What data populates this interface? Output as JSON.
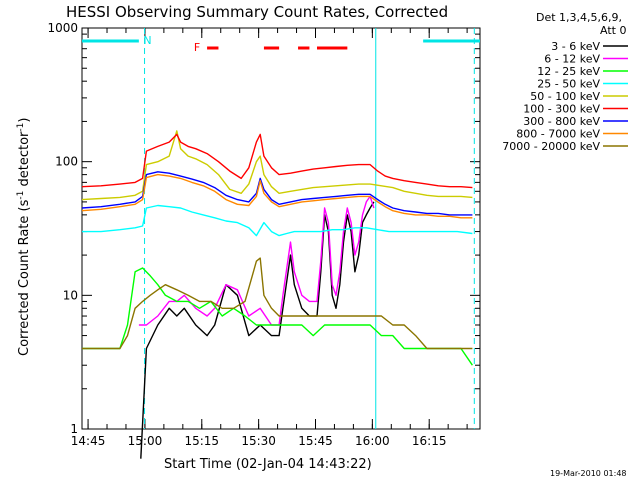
{
  "chart_data": {
    "type": "line",
    "title": "HESSI Observing Summary Count Rates, Corrected",
    "xlabel": "Start Time (02-Jan-04 14:43:22)",
    "ylabel_main": "Corrected Count Rate (s",
    "ylabel_sup1": "-1",
    "ylabel_mid": " detector",
    "ylabel_sup2": "-1",
    "ylabel_end": ")",
    "yscale": "log",
    "ylim": [
      1,
      1000
    ],
    "xlim_minutes": [
      0,
      105
    ],
    "x_tick_labels": [
      "14:45",
      "15:00",
      "15:15",
      "15:30",
      "15:45",
      "16:00",
      "16:15"
    ],
    "x_tick_minutes": [
      1.6,
      16.6,
      31.6,
      46.6,
      61.6,
      76.6,
      91.6
    ],
    "y_tick_labels": [
      "1",
      "10",
      "100",
      "1000"
    ],
    "y_tick_values": [
      1,
      10,
      100,
      1000
    ],
    "grid": false,
    "legend_position": "right",
    "legend_header_1": "Det 1,3,4,5,6,9,",
    "legend_header_2": "Att 0",
    "flag_letters": {
      "night": "N",
      "flare": "F"
    },
    "footer_date": "19-Mar-2010 01:48",
    "night_segments": [
      [
        0,
        15
      ],
      [
        90,
        105
      ]
    ],
    "flare_segments": [
      [
        33,
        36
      ],
      [
        48,
        52
      ],
      [
        57,
        60
      ],
      [
        62,
        70
      ]
    ],
    "vertical_markers": [
      {
        "minute": 16.5,
        "style": "dashed"
      },
      {
        "minute": 77.5,
        "style": "solid"
      },
      {
        "minute": 103.5,
        "style": "dashed"
      }
    ],
    "series": [
      {
        "name": "3 - 6 keV",
        "color": "#000000",
        "x": [
          15.5,
          17,
          20,
          23,
          25,
          27,
          30,
          33,
          35,
          38,
          41,
          44,
          47,
          50,
          52,
          53,
          55,
          56,
          58,
          60,
          62,
          63,
          64,
          65,
          66,
          67,
          68,
          69,
          70,
          71,
          72,
          73,
          74,
          75,
          76,
          77
        ],
        "y": [
          0.6,
          4,
          6,
          8,
          7,
          8,
          6,
          5,
          6,
          12,
          10,
          5,
          6,
          5,
          5,
          8,
          20,
          12,
          8,
          7,
          7,
          15,
          40,
          30,
          10,
          8,
          12,
          25,
          40,
          30,
          15,
          20,
          35,
          40,
          45,
          50
        ]
      },
      {
        "name": "6 - 12 keV",
        "color": "#ff00ff",
        "x": [
          15,
          17,
          20,
          23,
          25,
          27,
          30,
          33,
          35,
          38,
          41,
          44,
          47,
          50,
          52,
          53,
          55,
          56,
          58,
          60,
          62,
          63,
          64,
          65,
          66,
          67,
          68,
          69,
          70,
          71,
          72,
          73,
          74,
          75,
          76,
          77
        ],
        "y": [
          6,
          6,
          7,
          9,
          9,
          10,
          8,
          7,
          8,
          12,
          11,
          7,
          8,
          6,
          6,
          10,
          25,
          15,
          10,
          9,
          9,
          18,
          45,
          35,
          12,
          10,
          15,
          30,
          45,
          35,
          20,
          25,
          40,
          50,
          55,
          45
        ]
      },
      {
        "name": "12 - 25 keV",
        "color": "#00ff00",
        "x": [
          0,
          5,
          10,
          12,
          14,
          16,
          18,
          20,
          22,
          25,
          28,
          31,
          34,
          37,
          40,
          43,
          46,
          49,
          52,
          55,
          58,
          61,
          64,
          67,
          70,
          73,
          76,
          79,
          82,
          85,
          88,
          91,
          94,
          97,
          100,
          103
        ],
        "y": [
          4,
          4,
          4,
          6,
          15,
          16,
          14,
          12,
          10,
          9,
          9,
          8,
          9,
          7,
          8,
          7,
          6,
          6,
          6,
          6,
          6,
          5,
          6,
          6,
          6,
          6,
          6,
          5,
          5,
          4,
          4,
          4,
          4,
          4,
          4,
          3
        ]
      },
      {
        "name": "25 - 50 keV",
        "color": "#00ffff",
        "x": [
          0,
          5,
          10,
          14,
          16,
          17,
          20,
          23,
          26,
          29,
          32,
          35,
          38,
          41,
          44,
          46,
          48,
          50,
          52,
          54,
          56,
          58,
          60,
          63,
          66,
          69,
          72,
          75,
          78,
          81,
          84,
          87,
          90,
          93,
          96,
          99,
          103
        ],
        "y": [
          30,
          30,
          31,
          32,
          33,
          45,
          47,
          46,
          45,
          42,
          40,
          38,
          36,
          35,
          32,
          28,
          35,
          30,
          28,
          29,
          30,
          30,
          30,
          30,
          31,
          31,
          32,
          32,
          31,
          30,
          30,
          30,
          30,
          30,
          30,
          30,
          29
        ]
      },
      {
        "name": "50 - 100 keV",
        "color": "#cccc00",
        "x": [
          0,
          5,
          10,
          14,
          16,
          17,
          20,
          23,
          25,
          26,
          28,
          30,
          33,
          36,
          39,
          42,
          44,
          46,
          47,
          48,
          50,
          52,
          55,
          58,
          61,
          64,
          67,
          70,
          73,
          76,
          79,
          82,
          85,
          88,
          91,
          94,
          97,
          100,
          103
        ],
        "y": [
          52,
          53,
          54,
          56,
          60,
          95,
          100,
          110,
          170,
          125,
          110,
          105,
          95,
          80,
          62,
          58,
          68,
          100,
          110,
          80,
          65,
          58,
          60,
          62,
          64,
          65,
          66,
          67,
          68,
          68,
          66,
          64,
          60,
          58,
          56,
          55,
          55,
          55,
          54
        ]
      },
      {
        "name": "100 - 300 keV",
        "color": "#ff0000",
        "x": [
          0,
          5,
          10,
          14,
          16,
          17,
          20,
          23,
          25,
          26,
          28,
          30,
          33,
          36,
          39,
          42,
          44,
          46,
          47,
          48,
          50,
          52,
          55,
          58,
          61,
          64,
          67,
          70,
          73,
          76,
          78,
          80,
          82,
          85,
          88,
          91,
          94,
          97,
          100,
          103
        ],
        "y": [
          65,
          66,
          68,
          70,
          75,
          120,
          130,
          140,
          160,
          140,
          130,
          125,
          115,
          100,
          85,
          75,
          90,
          140,
          160,
          110,
          90,
          80,
          82,
          85,
          88,
          90,
          92,
          94,
          95,
          95,
          85,
          78,
          75,
          72,
          70,
          68,
          66,
          65,
          65,
          64
        ]
      },
      {
        "name": "300 - 800 keV",
        "color": "#0000ff",
        "x": [
          0,
          5,
          10,
          14,
          16,
          17,
          20,
          23,
          26,
          29,
          32,
          35,
          38,
          41,
          44,
          46,
          47,
          48,
          50,
          52,
          55,
          58,
          61,
          64,
          67,
          70,
          73,
          76,
          78,
          80,
          82,
          85,
          88,
          91,
          94,
          97,
          100,
          103
        ],
        "y": [
          45,
          46,
          48,
          50,
          55,
          80,
          84,
          82,
          78,
          74,
          70,
          64,
          56,
          52,
          50,
          58,
          75,
          62,
          52,
          48,
          50,
          52,
          53,
          54,
          55,
          56,
          57,
          57,
          52,
          48,
          45,
          43,
          42,
          41,
          41,
          40,
          40,
          40
        ]
      },
      {
        "name": "800 - 7000 keV",
        "color": "#ff8800",
        "x": [
          0,
          5,
          10,
          14,
          16,
          17,
          20,
          23,
          26,
          29,
          32,
          35,
          38,
          41,
          44,
          46,
          47,
          48,
          50,
          52,
          55,
          58,
          61,
          64,
          67,
          70,
          73,
          76,
          78,
          80,
          82,
          85,
          88,
          91,
          94,
          97,
          100,
          103
        ],
        "y": [
          43,
          44,
          46,
          48,
          52,
          76,
          80,
          78,
          75,
          70,
          66,
          60,
          52,
          48,
          47,
          55,
          72,
          58,
          50,
          46,
          48,
          50,
          51,
          52,
          53,
          54,
          55,
          55,
          50,
          46,
          43,
          41,
          40,
          40,
          39,
          39,
          38,
          38
        ]
      },
      {
        "name": "7000 - 20000 keV",
        "color": "#8b7500",
        "x": [
          0,
          5,
          10,
          12,
          14,
          16,
          18,
          20,
          22,
          25,
          28,
          31,
          34,
          37,
          40,
          43,
          46,
          47,
          48,
          50,
          52,
          55,
          58,
          61,
          64,
          67,
          70,
          73,
          76,
          79,
          82,
          85,
          88,
          91,
          94,
          97,
          100,
          103
        ],
        "y": [
          4,
          4,
          4,
          5,
          8,
          9,
          10,
          11,
          12,
          11,
          10,
          9,
          9,
          8,
          8,
          9,
          18,
          19,
          10,
          8,
          7,
          7,
          7,
          7,
          7,
          7,
          7,
          7,
          7,
          7,
          6,
          6,
          5,
          4,
          4,
          4,
          4,
          4
        ]
      }
    ]
  }
}
